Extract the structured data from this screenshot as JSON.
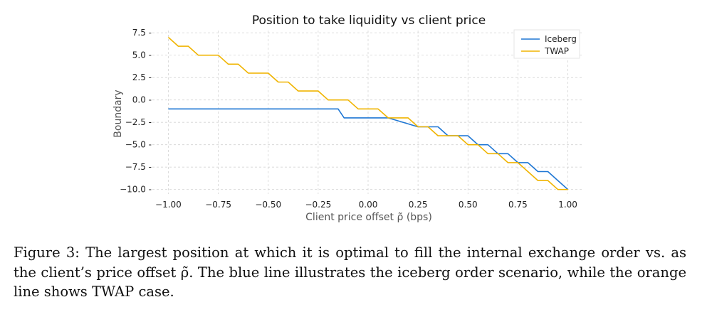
{
  "caption": "Figure 3: The largest position at which it is optimal to fill the internal exchange order vs. as the client’s price offset ρ̃. The blue line illustrates the iceberg order scenario, while the orange line shows TWAP case.",
  "chart_data": {
    "type": "line",
    "title": "Position to take liquidity vs client price",
    "xlabel": "Client price offset ρ̃ (bps)",
    "ylabel": "Boundary",
    "xlim": [
      -1.08,
      1.08
    ],
    "ylim": [
      -10.5,
      7.75
    ],
    "xticks": [
      -1.0,
      -0.75,
      -0.5,
      -0.25,
      0.0,
      0.25,
      0.5,
      0.75,
      1.0
    ],
    "xtick_labels": [
      "−1.00",
      "−0.75",
      "−0.50",
      "−0.25",
      "0.00",
      "0.25",
      "0.50",
      "0.75",
      "1.00"
    ],
    "yticks": [
      7.5,
      5.0,
      2.5,
      0.0,
      -2.5,
      -5.0,
      -7.5,
      -10.0
    ],
    "ytick_labels": [
      "7.5",
      "5.0",
      "2.5",
      "0.0",
      "−2.5",
      "−5.0",
      "−7.5",
      "−10.0"
    ],
    "grid": true,
    "legend_position": "top-right",
    "series": [
      {
        "name": "Iceberg",
        "color": "#1f77d4",
        "x": [
          -1.0,
          -0.15,
          -0.12,
          0.1,
          0.25,
          0.32,
          0.35,
          0.4,
          0.45,
          0.5,
          0.55,
          0.6,
          0.65,
          0.7,
          0.75,
          0.8,
          0.85,
          0.9,
          0.95,
          1.0
        ],
        "y": [
          -1,
          -1,
          -2,
          -2,
          -3,
          -3,
          -3,
          -4,
          -4,
          -4,
          -5,
          -5,
          -6,
          -6,
          -7,
          -7,
          -8,
          -8,
          -9,
          -10
        ]
      },
      {
        "name": "TWAP",
        "color": "#f0b400",
        "x": [
          -1.0,
          -0.95,
          -0.9,
          -0.85,
          -0.8,
          -0.75,
          -0.7,
          -0.65,
          -0.6,
          -0.55,
          -0.5,
          -0.45,
          -0.4,
          -0.35,
          -0.3,
          -0.25,
          -0.2,
          -0.15,
          -0.1,
          -0.05,
          0.0,
          0.05,
          0.1,
          0.15,
          0.2,
          0.25,
          0.3,
          0.35,
          0.4,
          0.45,
          0.5,
          0.55,
          0.6,
          0.65,
          0.7,
          0.75,
          0.8,
          0.85,
          0.9,
          0.95,
          1.0
        ],
        "y": [
          7,
          6,
          6,
          5,
          5,
          5,
          4,
          4,
          3,
          3,
          3,
          2,
          2,
          1,
          1,
          1,
          0,
          0,
          0,
          -1,
          -1,
          -1,
          -2,
          -2,
          -2,
          -3,
          -3,
          -4,
          -4,
          -4,
          -5,
          -5,
          -6,
          -6,
          -7,
          -7,
          -8,
          -9,
          -9,
          -10,
          -10
        ]
      }
    ]
  }
}
